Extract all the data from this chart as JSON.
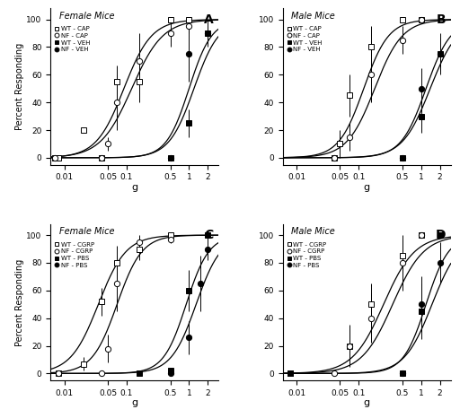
{
  "panels": [
    {
      "label": "A",
      "title": "Female Mice",
      "series": [
        {
          "name": "WT - CAP",
          "marker": "s",
          "filled": false,
          "x": [
            0.007,
            0.008,
            0.02,
            0.04,
            0.07,
            0.16,
            0.5,
            1.0
          ],
          "y": [
            0,
            0,
            20,
            0,
            55,
            55,
            100,
            100
          ],
          "yerr": [
            0,
            0,
            0,
            0,
            12,
            15,
            0,
            0
          ],
          "ec50": 0.09,
          "slope": 4.5
        },
        {
          "name": "NF - CAP",
          "marker": "o",
          "filled": false,
          "x": [
            0.007,
            0.04,
            0.05,
            0.07,
            0.16,
            0.5,
            1.0
          ],
          "y": [
            0,
            0,
            10,
            40,
            70,
            90,
            95
          ],
          "yerr": [
            0,
            0,
            5,
            20,
            20,
            10,
            5
          ],
          "ec50": 0.12,
          "slope": 4.0
        },
        {
          "name": "WT - VEH",
          "marker": "s",
          "filled": true,
          "x": [
            0.5,
            1.0,
            2.0
          ],
          "y": [
            0,
            25,
            90
          ],
          "yerr": [
            0,
            10,
            10
          ],
          "ec50": 1.2,
          "slope": 5.0
        },
        {
          "name": "NF - VEH",
          "marker": "o",
          "filled": true,
          "x": [
            0.5,
            1.0,
            2.0
          ],
          "y": [
            0,
            75,
            90
          ],
          "yerr": [
            0,
            20,
            5
          ],
          "ec50": 1.0,
          "slope": 5.5
        }
      ]
    },
    {
      "label": "B",
      "title": "Male Mice",
      "series": [
        {
          "name": "WT - CAP",
          "marker": "s",
          "filled": false,
          "x": [
            0.04,
            0.05,
            0.07,
            0.16,
            0.5,
            1.0
          ],
          "y": [
            0,
            10,
            45,
            80,
            100,
            100
          ],
          "yerr": [
            0,
            10,
            15,
            15,
            0,
            0
          ],
          "ec50": 0.12,
          "slope": 5.0
        },
        {
          "name": "NF - CAP",
          "marker": "o",
          "filled": false,
          "x": [
            0.04,
            0.07,
            0.16,
            0.5,
            1.0
          ],
          "y": [
            0,
            15,
            60,
            85,
            100
          ],
          "yerr": [
            0,
            10,
            20,
            10,
            0
          ],
          "ec50": 0.18,
          "slope": 4.5
        },
        {
          "name": "WT - VEH",
          "marker": "s",
          "filled": true,
          "x": [
            0.5,
            1.0,
            2.0
          ],
          "y": [
            0,
            30,
            75
          ],
          "yerr": [
            0,
            12,
            15
          ],
          "ec50": 1.4,
          "slope": 4.5
        },
        {
          "name": "NF - VEH",
          "marker": "o",
          "filled": true,
          "x": [
            0.5,
            1.0,
            2.0
          ],
          "y": [
            0,
            50,
            75
          ],
          "yerr": [
            0,
            15,
            12
          ],
          "ec50": 1.2,
          "slope": 5.0
        }
      ]
    },
    {
      "label": "C",
      "title": "Female Mice",
      "series": [
        {
          "name": "WT - CGRP",
          "marker": "s",
          "filled": false,
          "x": [
            0.008,
            0.02,
            0.04,
            0.07,
            0.16,
            0.5
          ],
          "y": [
            0,
            7,
            52,
            80,
            90,
            100
          ],
          "yerr": [
            0,
            5,
            10,
            12,
            8,
            0
          ],
          "ec50": 0.035,
          "slope": 4.5
        },
        {
          "name": "NF - CGRP",
          "marker": "o",
          "filled": false,
          "x": [
            0.008,
            0.04,
            0.05,
            0.07,
            0.16,
            0.5
          ],
          "y": [
            0,
            0,
            18,
            65,
            95,
            97
          ],
          "yerr": [
            0,
            0,
            10,
            20,
            5,
            3
          ],
          "ec50": 0.07,
          "slope": 5.0
        },
        {
          "name": "WT - PBS",
          "marker": "s",
          "filled": true,
          "x": [
            0.16,
            0.5,
            1.0,
            2.0
          ],
          "y": [
            0,
            2,
            60,
            100
          ],
          "yerr": [
            0,
            2,
            15,
            0
          ],
          "ec50": 0.9,
          "slope": 5.5
        },
        {
          "name": "NF - PBS",
          "marker": "o",
          "filled": true,
          "x": [
            0.5,
            1.0,
            1.5,
            2.0
          ],
          "y": [
            0,
            26,
            65,
            90
          ],
          "yerr": [
            0,
            12,
            20,
            8
          ],
          "ec50": 1.3,
          "slope": 5.0
        }
      ]
    },
    {
      "label": "D",
      "title": "Male Mice",
      "series": [
        {
          "name": "WT - CGRP",
          "marker": "s",
          "filled": false,
          "x": [
            0.008,
            0.07,
            0.16,
            0.5,
            1.0,
            2.0
          ],
          "y": [
            0,
            20,
            50,
            85,
            100,
            100
          ],
          "yerr": [
            0,
            12,
            15,
            12,
            0,
            0
          ],
          "ec50": 0.25,
          "slope": 4.0
        },
        {
          "name": "NF - CGRP",
          "marker": "o",
          "filled": false,
          "x": [
            0.04,
            0.07,
            0.16,
            0.5,
            1.0,
            2.0
          ],
          "y": [
            0,
            20,
            40,
            80,
            100,
            100
          ],
          "yerr": [
            0,
            15,
            18,
            20,
            0,
            0
          ],
          "ec50": 0.35,
          "slope": 4.0
        },
        {
          "name": "WT - PBS",
          "marker": "s",
          "filled": true,
          "x": [
            0.008,
            0.5,
            1.0,
            2.0
          ],
          "y": [
            0,
            0,
            45,
            100
          ],
          "yerr": [
            0,
            0,
            20,
            0
          ],
          "ec50": 1.2,
          "slope": 5.5
        },
        {
          "name": "NF - PBS",
          "marker": "o",
          "filled": true,
          "x": [
            0.5,
            1.0,
            2.0
          ],
          "y": [
            0,
            50,
            80
          ],
          "yerr": [
            0,
            20,
            15
          ],
          "ec50": 1.5,
          "slope": 4.5
        }
      ]
    }
  ],
  "xlim": [
    0.006,
    3.0
  ],
  "ylim": [
    -5,
    108
  ],
  "yticks": [
    0,
    20,
    40,
    60,
    80,
    100
  ],
  "xtick_labels": [
    "0.01",
    "0.05",
    "0.1",
    "0.5",
    "1",
    "2"
  ],
  "xtick_vals": [
    0.01,
    0.05,
    0.1,
    0.5,
    1.0,
    2.0
  ],
  "xlabel": "g",
  "ylabel": "Percent Responding"
}
